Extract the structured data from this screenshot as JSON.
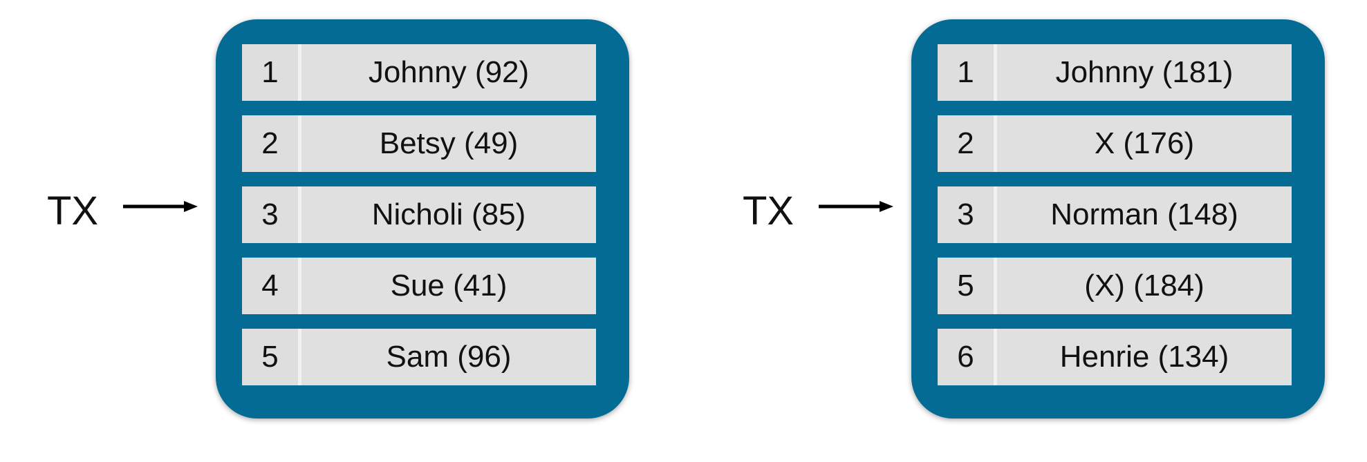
{
  "left": {
    "pointer_label": "TX",
    "rows": [
      {
        "index": "1",
        "value": "Johnny (92)"
      },
      {
        "index": "2",
        "value": "Betsy (49)"
      },
      {
        "index": "3",
        "value": "Nicholi (85)"
      },
      {
        "index": "4",
        "value": "Sue (41)"
      },
      {
        "index": "5",
        "value": "Sam (96)"
      }
    ]
  },
  "right": {
    "pointer_label": "TX",
    "rows": [
      {
        "index": "1",
        "value": "Johnny (181)"
      },
      {
        "index": "2",
        "value": "X (176)"
      },
      {
        "index": "3",
        "value": "Norman (148)"
      },
      {
        "index": "5",
        "value": "(X) (184)"
      },
      {
        "index": "6",
        "value": "Henrie (134)"
      }
    ]
  },
  "colors": {
    "container": "#046b95",
    "row_background": "#dcdcdc",
    "title_accent": "#0b6f9b"
  }
}
